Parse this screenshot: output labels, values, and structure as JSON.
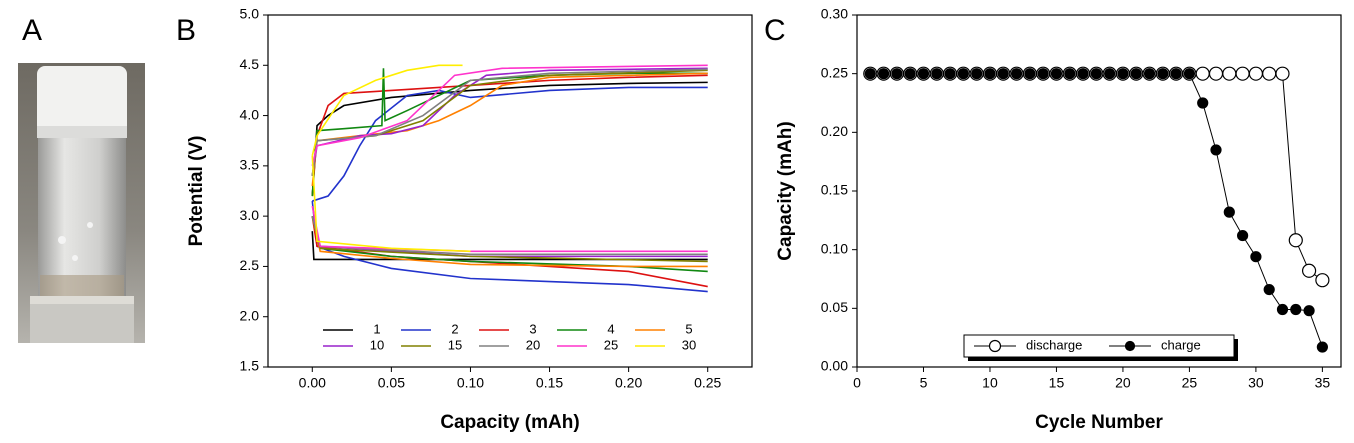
{
  "panel_labels": [
    "A",
    "B",
    "C"
  ],
  "chart_data": [
    {
      "type": "line",
      "xlabel": "Capacity (mAh)",
      "ylabel": "Potential (V)",
      "xlim": [
        -0.028,
        0.278
      ],
      "ylim": [
        1.5,
        5.0
      ],
      "xticks": [
        {
          "value": 0,
          "label": "0.00"
        },
        {
          "value": 0.05,
          "label": "0.05"
        },
        {
          "value": 0.1,
          "label": "0.10"
        },
        {
          "value": 0.15,
          "label": "0.15"
        },
        {
          "value": 0.2,
          "label": "0.20"
        },
        {
          "value": 0.25,
          "label": "0.25"
        }
      ],
      "yticks": [
        1.5,
        {
          "value": 2,
          "label": "2.0"
        },
        2.5,
        {
          "value": 3,
          "label": "3.0"
        },
        3.5,
        {
          "value": 4,
          "label": "4.0"
        },
        4.5,
        {
          "value": 5,
          "label": "5.0"
        }
      ],
      "legend": "lower center",
      "legend_columns": 5,
      "series": [
        {
          "name": "1",
          "color": "#000000",
          "x": [
            0,
            0.003,
            0.01,
            0.02,
            0.05,
            0.1,
            0.15,
            0.2,
            0.25,
            null,
            0,
            0.001,
            0.1,
            0.25
          ],
          "values": [
            3.2,
            3.9,
            4.0,
            4.1,
            4.18,
            4.25,
            4.3,
            4.32,
            4.33,
            null,
            2.85,
            2.57,
            2.57,
            2.57
          ]
        },
        {
          "name": "2",
          "color": "#2233cc",
          "x": [
            0,
            0.01,
            0.02,
            0.03,
            0.04,
            0.06,
            0.08,
            0.1,
            0.15,
            0.2,
            0.25,
            null,
            0,
            0.003,
            0.02,
            0.05,
            0.1,
            0.15,
            0.2,
            0.25
          ],
          "values": [
            3.15,
            3.2,
            3.4,
            3.7,
            3.95,
            4.2,
            4.25,
            4.18,
            4.25,
            4.28,
            4.28,
            null,
            3.15,
            2.7,
            2.6,
            2.48,
            2.38,
            2.35,
            2.32,
            2.25
          ]
        },
        {
          "name": "3",
          "color": "#dd1111",
          "x": [
            0,
            0.003,
            0.01,
            0.02,
            0.05,
            0.1,
            0.15,
            0.2,
            0.25,
            null,
            0,
            0.003,
            0.05,
            0.1,
            0.2,
            0.25
          ],
          "values": [
            3.2,
            3.8,
            4.1,
            4.22,
            4.25,
            4.3,
            4.35,
            4.38,
            4.4,
            null,
            3.0,
            2.7,
            2.6,
            2.55,
            2.45,
            2.3
          ]
        },
        {
          "name": "4",
          "color": "#118811",
          "x": [
            0,
            0.003,
            0.02,
            0.044,
            0.045,
            0.046,
            0.06,
            0.08,
            0.1,
            0.15,
            0.2,
            0.25,
            null,
            0,
            0.005,
            0.05,
            0.1,
            0.2,
            0.25
          ],
          "values": [
            3.2,
            3.85,
            3.87,
            3.9,
            4.47,
            3.95,
            4.05,
            4.2,
            4.35,
            4.4,
            4.42,
            4.42,
            null,
            3.0,
            2.68,
            2.6,
            2.55,
            2.5,
            2.45
          ]
        },
        {
          "name": "5",
          "color": "#ff8000",
          "x": [
            0,
            0.003,
            0.03,
            0.06,
            0.08,
            0.1,
            0.12,
            0.15,
            0.2,
            0.25,
            null,
            0,
            0.005,
            0.05,
            0.1,
            0.2,
            0.25
          ],
          "values": [
            3.3,
            3.75,
            3.8,
            3.85,
            3.95,
            4.1,
            4.3,
            4.38,
            4.4,
            4.42,
            null,
            3.0,
            2.65,
            2.58,
            2.52,
            2.5,
            2.5
          ]
        },
        {
          "name": "10",
          "color": "#9922cc",
          "x": [
            0,
            0.003,
            0.03,
            0.05,
            0.07,
            0.09,
            0.11,
            0.15,
            0.2,
            0.25,
            null,
            0,
            0.005,
            0.1,
            0.25
          ],
          "values": [
            3.4,
            3.7,
            3.8,
            3.82,
            3.9,
            4.2,
            4.4,
            4.45,
            4.46,
            4.47,
            null,
            3.0,
            2.7,
            2.6,
            2.6
          ]
        },
        {
          "name": "15",
          "color": "#808000",
          "x": [
            0,
            0.003,
            0.04,
            0.07,
            0.1,
            0.15,
            0.25,
            null,
            0,
            0.005,
            0.1,
            0.25
          ],
          "values": [
            3.4,
            3.75,
            3.8,
            3.95,
            4.3,
            4.4,
            4.45,
            null,
            3.0,
            2.68,
            2.6,
            2.55
          ]
        },
        {
          "name": "20",
          "color": "#808080",
          "x": [
            0,
            0.003,
            0.04,
            0.07,
            0.1,
            0.15,
            0.25,
            null,
            0,
            0.005,
            0.1,
            0.25
          ],
          "values": [
            3.4,
            3.75,
            3.8,
            4.0,
            4.35,
            4.42,
            4.46,
            null,
            3.0,
            2.7,
            2.62,
            2.62
          ]
        },
        {
          "name": "25",
          "color": "#ff33cc",
          "x": [
            0,
            0.003,
            0.03,
            0.06,
            0.09,
            0.12,
            0.25,
            null,
            0,
            0.005,
            0.1,
            0.25
          ],
          "values": [
            3.5,
            3.7,
            3.78,
            3.95,
            4.4,
            4.47,
            4.5,
            null,
            3.1,
            2.7,
            2.65,
            2.65
          ]
        },
        {
          "name": "30",
          "color": "#ffee00",
          "x": [
            0,
            0.003,
            0.02,
            0.04,
            0.06,
            0.08,
            0.095,
            null,
            0,
            0.003,
            0.05,
            0.1
          ],
          "values": [
            3.6,
            3.8,
            4.2,
            4.35,
            4.45,
            4.5,
            4.5,
            null,
            3.6,
            2.75,
            2.68,
            2.65
          ]
        }
      ]
    },
    {
      "type": "line",
      "xlabel": "Cycle Number",
      "ylabel": "Capacity (mAh)",
      "xlim": [
        0,
        36.4
      ],
      "ylim": [
        0,
        0.3
      ],
      "xticks": [
        0,
        5,
        10,
        15,
        20,
        25,
        30,
        35
      ],
      "yticks": [
        {
          "value": 0,
          "label": "0.00"
        },
        {
          "value": 0.05,
          "label": "0.05"
        },
        {
          "value": 0.1,
          "label": "0.10"
        },
        {
          "value": 0.15,
          "label": "0.15"
        },
        {
          "value": 0.2,
          "label": "0.20"
        },
        {
          "value": 0.25,
          "label": "0.25"
        },
        {
          "value": 0.3,
          "label": "0.30"
        }
      ],
      "legend": "lower center",
      "legend_columns": 2,
      "legend_frame": true,
      "x": [
        1,
        2,
        3,
        4,
        5,
        6,
        7,
        8,
        9,
        10,
        11,
        12,
        13,
        14,
        15,
        16,
        17,
        18,
        19,
        20,
        21,
        22,
        23,
        24,
        25,
        26,
        27,
        28,
        29,
        30,
        31,
        32,
        33,
        34,
        35
      ],
      "series": [
        {
          "name": "discharge",
          "color": "#000000",
          "marker": "open",
          "values": [
            0.25,
            0.25,
            0.25,
            0.25,
            0.25,
            0.25,
            0.25,
            0.25,
            0.25,
            0.25,
            0.25,
            0.25,
            0.25,
            0.25,
            0.25,
            0.25,
            0.25,
            0.25,
            0.25,
            0.25,
            0.25,
            0.25,
            0.25,
            0.25,
            0.25,
            0.25,
            0.25,
            0.25,
            0.25,
            0.25,
            0.25,
            0.25,
            0.108,
            0.082,
            0.074
          ]
        },
        {
          "name": "charge",
          "color": "#000000",
          "marker": "filled",
          "values": [
            0.25,
            0.25,
            0.25,
            0.25,
            0.25,
            0.25,
            0.25,
            0.25,
            0.25,
            0.25,
            0.25,
            0.25,
            0.25,
            0.25,
            0.25,
            0.25,
            0.25,
            0.25,
            0.25,
            0.25,
            0.25,
            0.25,
            0.25,
            0.25,
            0.25,
            0.225,
            0.185,
            0.132,
            0.112,
            0.094,
            0.066,
            0.049,
            0.049,
            0.048,
            0.017
          ]
        }
      ]
    }
  ]
}
